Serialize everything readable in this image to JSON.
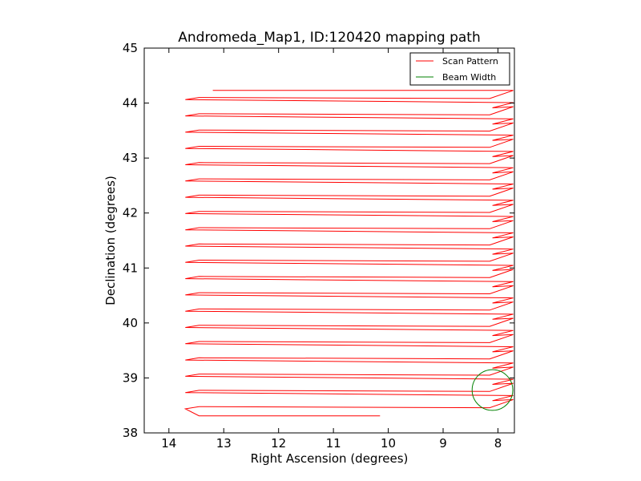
{
  "chart_data": {
    "type": "line",
    "title": "Andromeda_Map1, ID:120420 mapping path",
    "xlabel": "Right Ascension (degrees)",
    "ylabel": "Declination (degrees)",
    "xlim": [
      14.45,
      7.7
    ],
    "ylim": [
      38,
      45
    ],
    "x_inverted": true,
    "xticks": [
      14,
      13,
      12,
      11,
      10,
      9,
      8
    ],
    "xtick_labels": [
      "14",
      "13",
      "12",
      "11",
      "10",
      "9",
      "8"
    ],
    "yticks": [
      38,
      39,
      40,
      41,
      42,
      43,
      44,
      45
    ],
    "ytick_labels": [
      "38",
      "39",
      "40",
      "41",
      "42",
      "43",
      "44",
      "45"
    ],
    "grid": false,
    "legend_position": "top-right",
    "series": [
      {
        "name": "Scan Pattern",
        "color": "#ff0000",
        "kind": "raster-scan",
        "start": [
          13.2,
          44.22
        ],
        "end": [
          10.15,
          38.31
        ],
        "ra_min": 13.7,
        "ra_max": 7.72,
        "dec_step": 0.148
      },
      {
        "name": "Beam Width",
        "color": "#008000",
        "kind": "circle",
        "center": [
          8.1,
          38.78
        ],
        "radius_dec": 0.37
      }
    ]
  }
}
